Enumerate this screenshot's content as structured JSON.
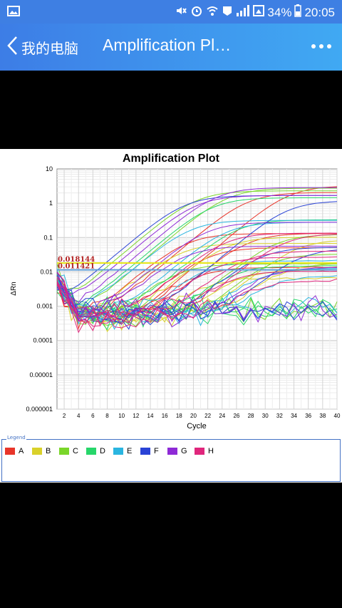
{
  "status_bar": {
    "battery_percent": "34%",
    "time": "20:05"
  },
  "app_bar": {
    "back_label": "我的电脑",
    "title": "Amplification Pl…"
  },
  "colors": {
    "app_bar": "#3e8eea",
    "threshold_yellow": "#e6e619",
    "threshold_blue": "#5b9bd5",
    "threshold_label": "#b22222"
  },
  "chart_data": {
    "type": "line",
    "title": "Amplification Plot",
    "xlabel": "Cycle",
    "ylabel": "ΔRn",
    "y_scale": "log",
    "ylim": [
      1e-06,
      10
    ],
    "xlim": [
      1,
      40
    ],
    "x_ticks": [
      "2",
      "4",
      "6",
      "8",
      "10",
      "12",
      "14",
      "16",
      "18",
      "20",
      "22",
      "24",
      "26",
      "28",
      "30",
      "32",
      "34",
      "36",
      "38",
      "40"
    ],
    "y_ticks": [
      "10",
      "1",
      "0.1",
      "0.01",
      "0.001",
      "0.0001",
      "0.00001",
      "0.000001"
    ],
    "thresholds": [
      {
        "label": "0.018144",
        "value": 0.018144
      },
      {
        "label": "0.011421",
        "value": 0.011421
      }
    ],
    "grid": true,
    "series": [
      {
        "name": "A",
        "color": "#e8352a"
      },
      {
        "name": "B",
        "color": "#d9d12a"
      },
      {
        "name": "C",
        "color": "#7ad62a"
      },
      {
        "name": "D",
        "color": "#27d66a"
      },
      {
        "name": "E",
        "color": "#2ab5e0"
      },
      {
        "name": "F",
        "color": "#2a43d6"
      },
      {
        "name": "G",
        "color": "#8e2ad6"
      },
      {
        "name": "H",
        "color": "#e0267c"
      }
    ]
  },
  "legend": {
    "title": "Legend"
  }
}
